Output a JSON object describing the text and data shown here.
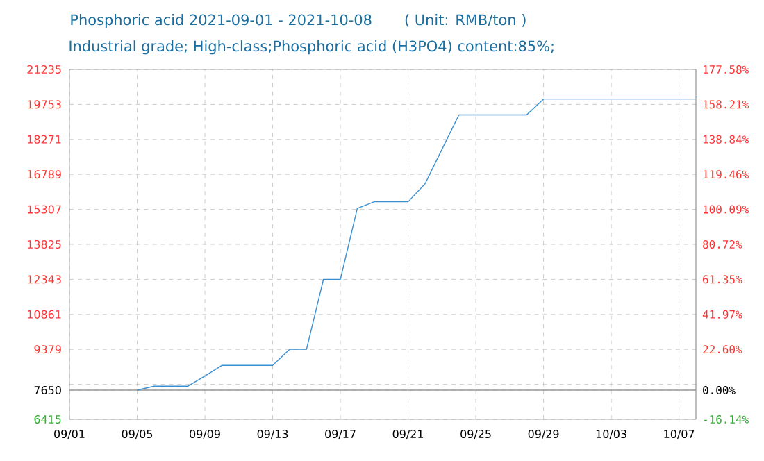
{
  "chart_data": {
    "type": "line",
    "title": "Phosphoric acid 2021-09-01 - 2021-10-08",
    "annotations": [
      "( Unit: RMB/ton )"
    ],
    "subtitle": "Industrial grade; High-class;Phosphoric acid (H3PO4) content:85%;",
    "x": [
      "2021-09-05",
      "2021-09-06",
      "2021-09-08",
      "2021-09-09",
      "2021-09-10",
      "2021-09-13",
      "2021-09-14",
      "2021-09-15",
      "2021-09-16",
      "2021-09-17",
      "2021-09-18",
      "2021-09-19",
      "2021-09-21",
      "2021-09-22",
      "2021-09-23",
      "2021-09-24",
      "2021-09-28",
      "2021-09-29",
      "2021-10-08"
    ],
    "series": [
      {
        "color": "#3a8fd0",
        "values": [
          7650,
          7820,
          7820,
          8250,
          8700,
          8700,
          9380,
          9380,
          12340,
          12340,
          15350,
          15630,
          15630,
          16390,
          17850,
          19310,
          19310,
          19980,
          19980
        ]
      }
    ],
    "xlim": [
      "2021-09-01",
      "2021-10-08"
    ],
    "xticks": [
      {
        "value": "2021-09-01",
        "label": "09/01"
      },
      {
        "value": "2021-09-05",
        "label": "09/05"
      },
      {
        "value": "2021-09-09",
        "label": "09/09"
      },
      {
        "value": "2021-09-13",
        "label": "09/13"
      },
      {
        "value": "2021-09-17",
        "label": "09/17"
      },
      {
        "value": "2021-09-21",
        "label": "09/21"
      },
      {
        "value": "2021-09-25",
        "label": "09/25"
      },
      {
        "value": "2021-09-29",
        "label": "09/29"
      },
      {
        "value": "2021-10-03",
        "label": "10/03"
      },
      {
        "value": "2021-10-07",
        "label": "10/07"
      }
    ],
    "ylim": [
      6415,
      21235
    ],
    "yticks": [
      6415,
      7650,
      {
        "value": 7897,
        "label": null
      },
      9379,
      10861,
      12343,
      13825,
      15307,
      16789,
      18271,
      19753,
      21235
    ],
    "y2lim": [
      -16.14,
      177.58
    ],
    "y2ticks": [
      {
        "value": -16.14,
        "label": "-16.14%"
      },
      {
        "value": 0,
        "label": "0.00%"
      },
      {
        "value": 22.6,
        "label": "22.60%"
      },
      {
        "value": 41.97,
        "label": "41.97%"
      },
      {
        "value": 61.35,
        "label": "61.35%"
      },
      {
        "value": 80.72,
        "label": "80.72%"
      },
      {
        "value": 100.09,
        "label": "100.09%"
      },
      {
        "value": 119.46,
        "label": "119.46%"
      },
      {
        "value": 138.84,
        "label": "138.84%"
      },
      {
        "value": 158.21,
        "label": "158.21%"
      },
      {
        "value": 177.58,
        "label": "177.58%"
      }
    ],
    "ref_lines": [
      {
        "axis": "y",
        "value": 7650,
        "color": "#999999",
        "line_style": "solid"
      }
    ],
    "grid": true,
    "marker": "none",
    "line_style": "solid"
  }
}
